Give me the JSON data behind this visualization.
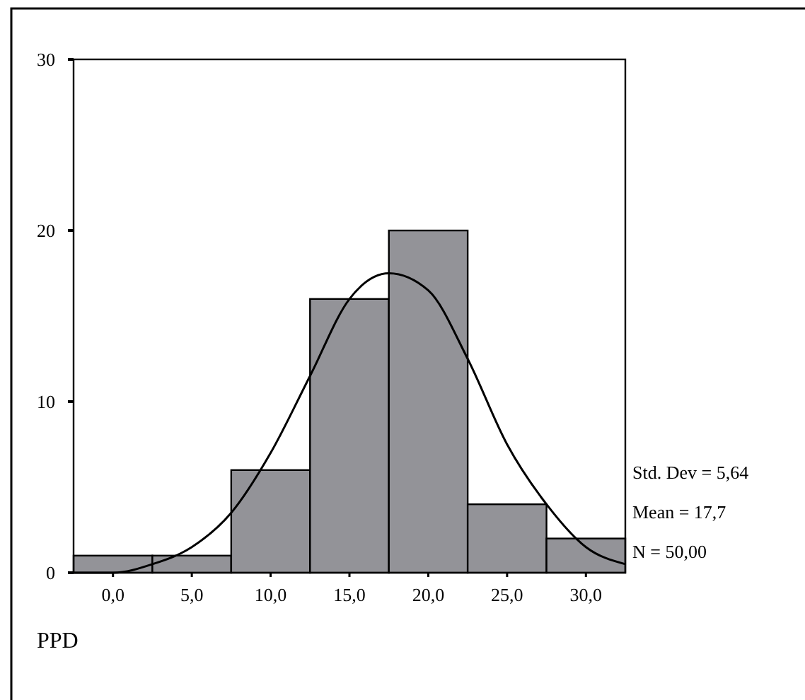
{
  "chart_data": {
    "type": "histogram",
    "xlabel": "PPD",
    "bins": [
      -2.5,
      2.5,
      7.5,
      12.5,
      17.5,
      22.5,
      27.5,
      32.5
    ],
    "series": [
      {
        "color": "#939398",
        "values": [
          1,
          1,
          6,
          16,
          20,
          4,
          2
        ]
      },
      {
        "type": "line",
        "color": "#000000",
        "x": [
          -2.5,
          0,
          2.5,
          5,
          7.5,
          10,
          12.5,
          15,
          17.5,
          20,
          22.5,
          25,
          27.5,
          30,
          32.5
        ],
        "values": [
          0,
          0,
          0.5,
          1.5,
          3.5,
          7,
          11.5,
          16,
          17.5,
          16.5,
          12.5,
          7.5,
          4,
          1.5,
          0.5
        ]
      }
    ],
    "xlim": [
      -2.5,
      32.5
    ],
    "xticks": [
      {
        "value": 0,
        "label": "0,0"
      },
      {
        "value": 5,
        "label": "5,0"
      },
      {
        "value": 10,
        "label": "10,0"
      },
      {
        "value": 15,
        "label": "15,0"
      },
      {
        "value": 20,
        "label": "20,0"
      },
      {
        "value": 25,
        "label": "25,0"
      },
      {
        "value": 30,
        "label": "30,0"
      }
    ],
    "ylim": [
      0,
      30
    ],
    "yticks": [
      0,
      10,
      20,
      30
    ],
    "annotations": [
      "Std.  Dev = 5,64",
      "Mean = 17,7",
      "N = 50,00"
    ]
  }
}
